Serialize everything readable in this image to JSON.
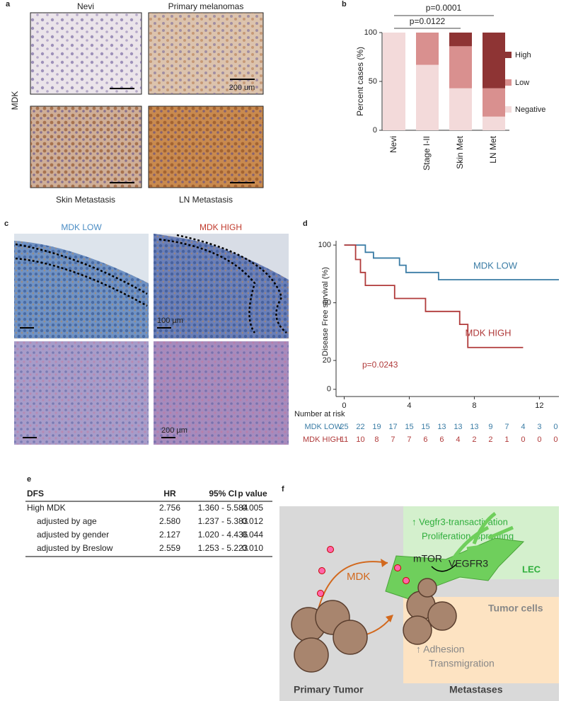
{
  "panel_labels": [
    "a",
    "b",
    "c",
    "d",
    "e",
    "f"
  ],
  "figure_a": {
    "row_label": "MDK",
    "titles": [
      "Nevi",
      "Primary melanomas",
      "Skin Metastasis",
      "LN Metastasis"
    ],
    "scale_bar": "200 um"
  },
  "figure_c": {
    "titles": [
      "MDK LOW",
      "MDK HIGH"
    ],
    "scale_bars": [
      "100 µm",
      "200 µm"
    ]
  },
  "chart_data": [
    {
      "type": "bar",
      "stacked": true,
      "ylabel": "Percent cases (%)",
      "categories": [
        "Nevi",
        "Stage I-II",
        "Skin Met",
        "LN Met"
      ],
      "series": [
        {
          "name": "Negative",
          "color": "#f3dada",
          "values": [
            100,
            67,
            43,
            14
          ]
        },
        {
          "name": "Low",
          "color": "#d9908f",
          "values": [
            0,
            33,
            43,
            29
          ]
        },
        {
          "name": "High",
          "color": "#8e3434",
          "values": [
            0,
            0,
            14,
            57
          ]
        }
      ],
      "ylim": [
        0,
        100
      ],
      "yticks": [
        0,
        50,
        100
      ],
      "annotations": [
        "p=0.0001",
        "p=0.0122"
      ]
    },
    {
      "type": "line",
      "ylabel": "Disease Free survival (%)",
      "series": [
        {
          "name": "MDK LOW",
          "color": "#3a7ca5",
          "x": [
            0,
            1.3,
            1.3,
            1.8,
            1.8,
            3.4,
            3.4,
            3.8,
            3.8,
            5.8,
            5.8,
            13.2
          ],
          "values": [
            100,
            100,
            95,
            95,
            91,
            91,
            86,
            86,
            81,
            81,
            76,
            76
          ]
        },
        {
          "name": "MDK HIGH",
          "color": "#b03a3a",
          "x": [
            0,
            0.7,
            0.7,
            1.0,
            1.0,
            1.3,
            1.3,
            3.1,
            3.1,
            5.0,
            5.0,
            7.1,
            7.1,
            7.6,
            7.6,
            11.0
          ],
          "values": [
            100,
            100,
            90,
            90,
            81,
            81,
            72,
            72,
            63,
            63,
            54,
            54,
            45,
            45,
            29,
            29
          ]
        }
      ],
      "xlim": [
        -0.5,
        13.2
      ],
      "xticks": [
        0,
        4,
        8,
        12
      ],
      "ylim": [
        -5,
        103
      ],
      "yticks": [
        0,
        20,
        60,
        100
      ],
      "annotations": [
        "p=0.0243"
      ],
      "risk_table": {
        "title": "Number at risk",
        "rows": [
          [
            25,
            22,
            19,
            17,
            15,
            15,
            13,
            13,
            13,
            9,
            7,
            4,
            3,
            0
          ],
          [
            11,
            10,
            8,
            7,
            7,
            6,
            6,
            4,
            2,
            2,
            1,
            0,
            0,
            0
          ]
        ]
      }
    }
  ],
  "table": {
    "header": [
      "DFS",
      "HR",
      "95% CI",
      "p value"
    ],
    "rows": [
      [
        "High MDK",
        "2.756",
        "1.360 - 5.584",
        "0.005"
      ],
      [
        "adjusted by age",
        "2.580",
        "1.237 - 5.383",
        "0.012"
      ],
      [
        "adjusted by gender",
        "2.127",
        "1.020 - 4.436",
        "0.044"
      ],
      [
        "adjusted by Breslow",
        "2.559",
        "1.253 - 5.223",
        "0.010"
      ]
    ]
  },
  "diagram": {
    "lec_text": [
      "↑ Vegfr3-transactivation",
      "Proliferation, sprouting"
    ],
    "lec": "LEC",
    "mtor": "mTOR",
    "vegfr3": "VEGFR3",
    "mdk": "MDK",
    "tumor_cells": "Tumor cells",
    "tumor_text": [
      "↑  Adhesion",
      "Transmigration"
    ],
    "primary": "Primary Tumor",
    "metastases": "Metastases"
  }
}
